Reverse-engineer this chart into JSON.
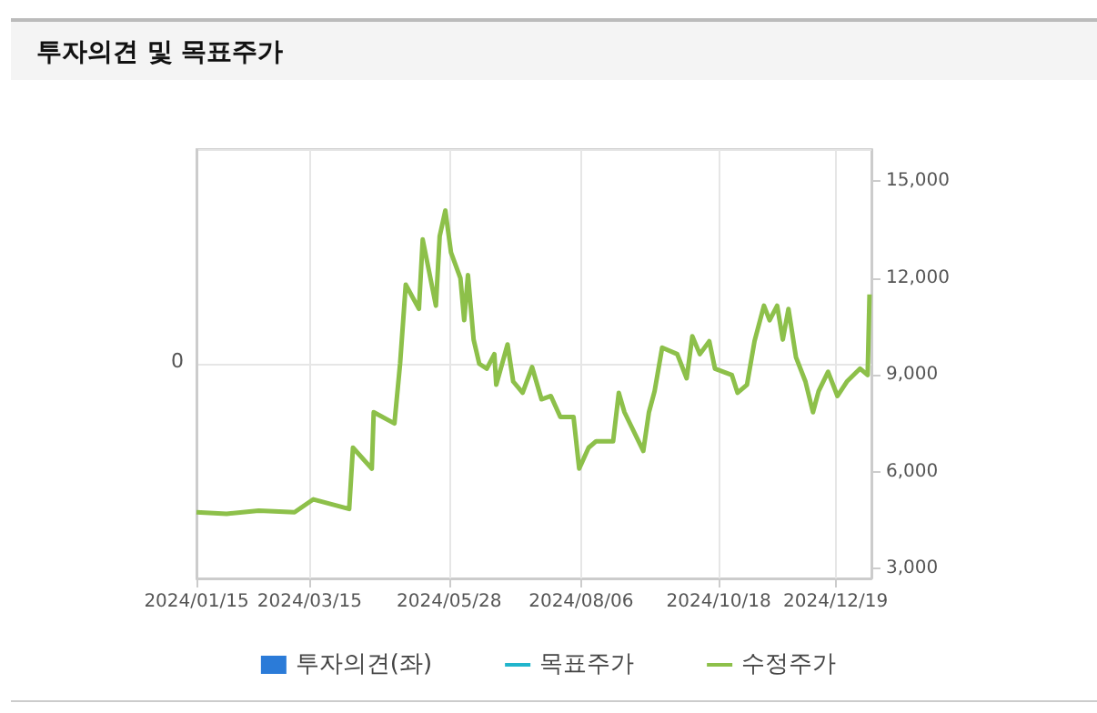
{
  "chart_data": {
    "type": "line",
    "title": "투자의견 및 목표주가",
    "xlim": [
      "2024-01-15",
      "2025-01-07"
    ],
    "xticks": [
      {
        "value": "2024-01-15",
        "label": "2024/01/15"
      },
      {
        "value": "2024-03-15",
        "label": "2024/03/15"
      },
      {
        "value": "2024-05-28",
        "label": "2024/05/28"
      },
      {
        "value": "2024-08-06",
        "label": "2024/08/06"
      },
      {
        "value": "2024-10-18",
        "label": "2024/10/18"
      },
      {
        "value": "2024-12-19",
        "label": "2024/12/19"
      }
    ],
    "relative": false,
    "annotations": [
      "0"
    ],
    "y2lim": [
      2700,
      16000
    ],
    "y2ticks": [
      {
        "value": 3000,
        "label": "3,000"
      },
      {
        "value": 6000,
        "label": "6,000"
      },
      {
        "value": 9000,
        "label": "9,000"
      },
      {
        "value": 12000,
        "label": "12,000"
      },
      {
        "value": 15000,
        "label": "15,000"
      }
    ],
    "grid": true,
    "legend": "bottom",
    "marker": "none",
    "line_style": "solid",
    "series": [
      {
        "name": "투자의견(좌)",
        "type": "bar",
        "color": "#2b7bd8",
        "axis": "y"
      },
      {
        "name": "목표주가",
        "type": "line",
        "color": "#21b5cc",
        "axis": "y2"
      },
      {
        "name": "수정주가",
        "color": "#8dc04a",
        "axis": "y2",
        "x": [
          "2024-01-15",
          "2024-01-31",
          "2024-02-17",
          "2024-03-07",
          "2024-03-17",
          "2024-04-05",
          "2024-04-07",
          "2024-04-17",
          "2024-04-18",
          "2024-04-29",
          "2024-05-02",
          "2024-05-05",
          "2024-05-12",
          "2024-05-14",
          "2024-05-21",
          "2024-05-23",
          "2024-05-26",
          "2024-05-29",
          "2024-06-03",
          "2024-06-05",
          "2024-06-07",
          "2024-06-10",
          "2024-06-13",
          "2024-06-17",
          "2024-06-21",
          "2024-06-22",
          "2024-06-28",
          "2024-07-01",
          "2024-07-06",
          "2024-07-11",
          "2024-07-16",
          "2024-07-21",
          "2024-07-26",
          "2024-08-02",
          "2024-08-05",
          "2024-08-10",
          "2024-08-14",
          "2024-08-23",
          "2024-08-26",
          "2024-08-29",
          "2024-09-08",
          "2024-09-11",
          "2024-09-14",
          "2024-09-18",
          "2024-09-26",
          "2024-10-01",
          "2024-10-04",
          "2024-10-08",
          "2024-10-13",
          "2024-10-16",
          "2024-10-25",
          "2024-10-28",
          "2024-11-02",
          "2024-11-06",
          "2024-11-11",
          "2024-11-14",
          "2024-11-18",
          "2024-11-21",
          "2024-11-24",
          "2024-11-28",
          "2024-12-03",
          "2024-12-07",
          "2024-12-10",
          "2024-12-15",
          "2024-12-20",
          "2024-12-25",
          "2025-01-01",
          "2025-01-05",
          "2025-01-06"
        ],
        "values": [
          4750,
          4700,
          4800,
          4750,
          5150,
          4850,
          6750,
          6100,
          7850,
          7500,
          9350,
          11800,
          11050,
          13200,
          11150,
          13300,
          14100,
          12800,
          12000,
          10700,
          12100,
          10100,
          9350,
          9200,
          9650,
          8700,
          9950,
          8800,
          8450,
          9250,
          8250,
          8350,
          7700,
          7700,
          6100,
          6750,
          6950,
          6950,
          8450,
          7850,
          6650,
          7850,
          8500,
          9850,
          9650,
          8900,
          10200,
          9650,
          10050,
          9200,
          9000,
          8450,
          8700,
          10050,
          11150,
          10700,
          11150,
          10100,
          11050,
          9550,
          8800,
          7850,
          8500,
          9100,
          8350,
          8800,
          9200,
          9000,
          11500
        ]
      }
    ]
  }
}
